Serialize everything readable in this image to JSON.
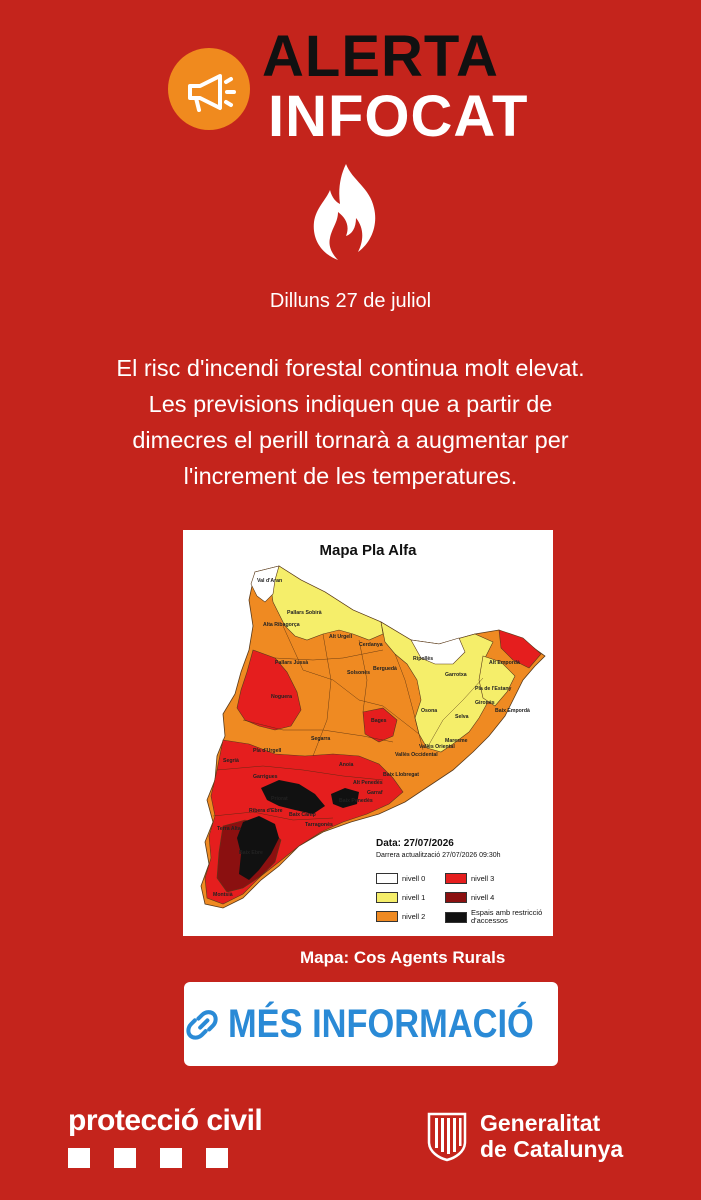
{
  "header": {
    "title_line1": "ALERTA",
    "title_line2": "INFOCAT",
    "badge_icon": "megaphone-icon",
    "hero_icon": "fire-icon"
  },
  "date": "Dilluns 27 de juliol",
  "message": [
    "El risc d'incendi forestal continua molt elevat.",
    "Les previsions indiquen que a partir de",
    "dimecres el perill tornarà a augmentar per",
    "l'increment de les temperatures."
  ],
  "map": {
    "title": "Mapa Pla Alfa",
    "date_label": "Data: 27/07/2026",
    "updated_label": "Darrera actualització  27/07/2026 09:30h",
    "region_labels": [
      "Val d'Aran",
      "Pallars Sobirà",
      "Alta Ribagorça",
      "Cerdanya",
      "Ripollès",
      "Alt Empordà",
      "Garrotxa",
      "Pla de l'Estany",
      "Baix Empordà",
      "Gironès",
      "Selva",
      "Osona",
      "Maresme",
      "Vallès Oriental",
      "Vallès Occidental",
      "Baix Llobregat",
      "Garraf",
      "Alt Urgell",
      "Solsonès",
      "Berguedà",
      "Noguera",
      "Pallars Jussà",
      "Segarra",
      "Segrià",
      "Pla d'Urgell",
      "Garrigues",
      "Anoia",
      "Bages",
      "Alt Penedès",
      "Baix Penedès",
      "Tarragonès",
      "Baix Camp",
      "Priorat",
      "Ribera d'Ebre",
      "Terra Alta",
      "Baix Ebre",
      "Montsià"
    ],
    "colors": {
      "nivell_0": "#ffffff",
      "nivell_1": "#f5ee6a",
      "nivell_2": "#ef8a22",
      "nivell_3": "#e51e1e",
      "nivell_4": "#8b1010",
      "restriccio": "#111111"
    },
    "legend": [
      {
        "label": "nivell 0",
        "color": "#ffffff"
      },
      {
        "label": "nivell 3",
        "color": "#e51e1e"
      },
      {
        "label": "nivell 1",
        "color": "#f5ee6a"
      },
      {
        "label": "nivell 4",
        "color": "#8b1010"
      },
      {
        "label": "nivell 2",
        "color": "#ef8a22"
      },
      {
        "label": "Espais amb restricció d'accessos",
        "color": "#111111"
      }
    ],
    "credit": "Mapa: Cos Agents Rurals"
  },
  "more_button": {
    "label": "MÉS INFORMACIÓ",
    "icon": "link-icon",
    "color": "#2a8ad6"
  },
  "footer": {
    "left_logo_text": "protecció civil",
    "right_logo_line1": "Generalitat",
    "right_logo_line2": "de Catalunya",
    "right_logo_icon": "catalan-flag-seal-icon"
  },
  "theme": {
    "background": "#c4241c",
    "badge": "#f08a1e"
  }
}
